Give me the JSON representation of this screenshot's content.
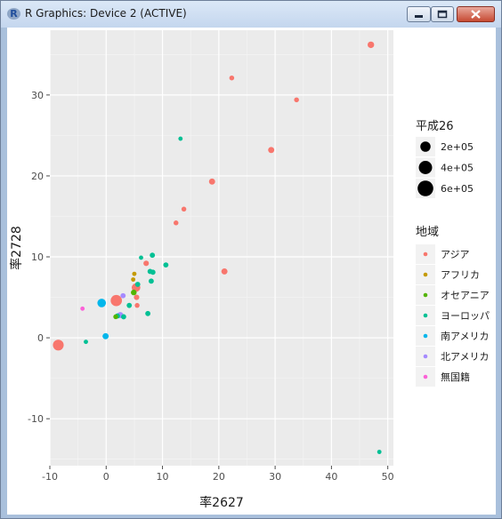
{
  "window": {
    "title": "R Graphics: Device 2 (ACTIVE)",
    "app_icon_letter": "R"
  },
  "chart_data": {
    "type": "scatter",
    "xlabel": "率2627",
    "ylabel": "率2728",
    "xlim": [
      -10,
      51
    ],
    "ylim": [
      -15.8,
      38
    ],
    "xticks": [
      -10,
      0,
      10,
      20,
      30,
      40,
      50
    ],
    "yticks": [
      -10,
      0,
      10,
      20,
      30
    ],
    "x_tick_labels": [
      "-10",
      "0",
      "10",
      "20",
      "30",
      "40",
      "50"
    ],
    "y_tick_labels": [
      "-10",
      "0",
      "10",
      "20",
      "30"
    ],
    "grid": true,
    "background": "#ebebeb",
    "size_legend": {
      "title": "平成26",
      "placement": "right",
      "entries": [
        {
          "label": "2e+05",
          "value": 200000
        },
        {
          "label": "4e+05",
          "value": 400000
        },
        {
          "label": "6e+05",
          "value": 600000
        }
      ]
    },
    "color_legend": {
      "title": "地域",
      "placement": "right"
    },
    "series": [
      {
        "name": "アジア",
        "color": "#f8766d",
        "points": [
          {
            "x": 47,
            "y": 36.2,
            "s": 50000
          },
          {
            "x": 22.3,
            "y": 32.1,
            "s": 15000
          },
          {
            "x": 33.8,
            "y": 29.4,
            "s": 15000
          },
          {
            "x": 29.3,
            "y": 23.2,
            "s": 40000
          },
          {
            "x": 18.8,
            "y": 19.3,
            "s": 40000
          },
          {
            "x": 13.8,
            "y": 15.9,
            "s": 15000
          },
          {
            "x": 12.4,
            "y": 14.2,
            "s": 15000
          },
          {
            "x": 21,
            "y": 8.2,
            "s": 40000
          },
          {
            "x": 7.1,
            "y": 9.2,
            "s": 25000
          },
          {
            "x": 5.3,
            "y": 6.2,
            "s": 120000
          },
          {
            "x": 5.4,
            "y": 5,
            "s": 25000
          },
          {
            "x": 5.5,
            "y": 4,
            "s": 15000
          },
          {
            "x": 1.8,
            "y": 4.6,
            "s": 260000
          },
          {
            "x": -8.5,
            "y": -0.9,
            "s": 230000
          }
        ]
      },
      {
        "name": "アフリカ",
        "color": "#c49a00",
        "points": [
          {
            "x": 5,
            "y": 7.9,
            "s": 8000
          },
          {
            "x": 4.8,
            "y": 7.2,
            "s": 8000
          }
        ]
      },
      {
        "name": "オセアニア",
        "color": "#53b400",
        "points": [
          {
            "x": 4.9,
            "y": 5.6,
            "s": 30000
          },
          {
            "x": 1.7,
            "y": 2.6,
            "s": 15000
          }
        ]
      },
      {
        "name": "ヨーロッパ",
        "color": "#00c094",
        "points": [
          {
            "x": 13.2,
            "y": 24.6,
            "s": 8000
          },
          {
            "x": 6.2,
            "y": 9.9,
            "s": 8000
          },
          {
            "x": 8.2,
            "y": 10.2,
            "s": 20000
          },
          {
            "x": 10.6,
            "y": 9,
            "s": 20000
          },
          {
            "x": 7.8,
            "y": 8.2,
            "s": 20000
          },
          {
            "x": 8.3,
            "y": 8.1,
            "s": 20000
          },
          {
            "x": 8,
            "y": 7,
            "s": 20000
          },
          {
            "x": 5.6,
            "y": 6.6,
            "s": 20000
          },
          {
            "x": 7.4,
            "y": 3,
            "s": 20000
          },
          {
            "x": 4.1,
            "y": 4,
            "s": 20000
          },
          {
            "x": 3.1,
            "y": 2.6,
            "s": 20000
          },
          {
            "x": 2,
            "y": 2.7,
            "s": 20000
          },
          {
            "x": -3.6,
            "y": -0.5,
            "s": 8000
          },
          {
            "x": 48.5,
            "y": -14.1,
            "s": 8000
          }
        ]
      },
      {
        "name": "南アメリカ",
        "color": "#00b6eb",
        "points": [
          {
            "x": -0.8,
            "y": 4.3,
            "s": 120000
          },
          {
            "x": -0.1,
            "y": 0.2,
            "s": 40000
          }
        ]
      },
      {
        "name": "北アメリカ",
        "color": "#a58aff",
        "points": [
          {
            "x": 3,
            "y": 5.2,
            "s": 20000
          },
          {
            "x": 2.5,
            "y": 2.8,
            "s": 40000
          }
        ]
      },
      {
        "name": "無国籍",
        "color": "#fb61d7",
        "points": [
          {
            "x": -4.2,
            "y": 3.6,
            "s": 8000
          }
        ]
      }
    ]
  }
}
